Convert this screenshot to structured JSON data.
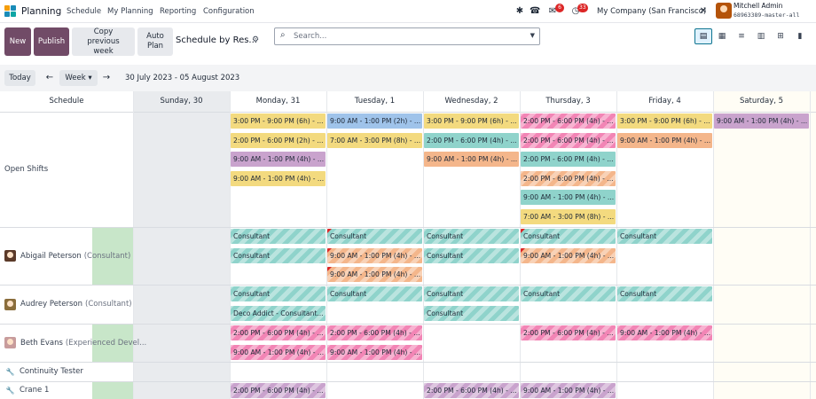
{
  "app": {
    "name": "Planning",
    "menus": [
      "Schedule",
      "My Planning",
      "Reporting",
      "Configuration"
    ],
    "icons": [
      "bug-icon",
      "phone-icon",
      "chat-icon",
      "clock-icon"
    ],
    "chat_count": "6",
    "activity_count": "33",
    "company": "My Company (San Francisco)",
    "user_name": "Mitchell Admin",
    "database": "68963389-master-all"
  },
  "control": {
    "new": "New",
    "publish": "Publish",
    "copy_previous_week": "Copy previous week",
    "auto_plan": "Auto Plan",
    "view_title": "Schedule by Res...",
    "search_placeholder": "Search...",
    "view_icons": [
      "gantt-view-icon",
      "calendar-view-icon",
      "list-view-icon",
      "kanban-view-icon",
      "pivot-view-icon",
      "graph-view-icon"
    ]
  },
  "nav": {
    "today": "Today",
    "prev": "←",
    "scale": "Week ▾",
    "next": "→",
    "range": "30 July 2023 - 05 August 2023"
  },
  "grid": {
    "schedule_header": "Schedule",
    "days": [
      "Sunday, 30",
      "Monday, 31",
      "Tuesday, 1",
      "Wednesday, 2",
      "Thursday, 3",
      "Friday, 4",
      "Saturday, 5"
    ],
    "today_index": 6,
    "colors": {
      "yellow": "#f3da7f",
      "blue": "#9fc3ea",
      "teal": "#8fd3cb",
      "orange": "#f4b68b",
      "purple": "#c9a3cd",
      "pink": "#f285b5"
    },
    "rows": [
      {
        "name": "Open Shifts",
        "sub": "",
        "kind": "group",
        "shifts": [
          {
            "day": 1,
            "slot": 0,
            "text": "3:00 PM - 9:00 PM (6h) - ...",
            "color": "yellow"
          },
          {
            "day": 1,
            "slot": 1,
            "text": "2:00 PM - 6:00 PM (2h) - ...",
            "color": "yellow"
          },
          {
            "day": 1,
            "slot": 2,
            "text": "9:00 AM - 1:00 PM (4h) - ...",
            "color": "purple"
          },
          {
            "day": 1,
            "slot": 3,
            "text": "9:00 AM - 1:00 PM (4h) - ...",
            "color": "yellow"
          },
          {
            "day": 2,
            "slot": 0,
            "text": "9:00 AM - 1:00 PM (2h) - ...",
            "color": "blue"
          },
          {
            "day": 2,
            "slot": 1,
            "text": "7:00 AM - 3:00 PM (8h) - ...",
            "color": "yellow"
          },
          {
            "day": 3,
            "slot": 0,
            "text": "3:00 PM - 9:00 PM (6h) - ...",
            "color": "yellow"
          },
          {
            "day": 3,
            "slot": 1,
            "text": "2:00 PM - 6:00 PM (4h) - ...",
            "color": "teal"
          },
          {
            "day": 3,
            "slot": 2,
            "text": "9:00 AM - 1:00 PM (4h) - ...",
            "color": "orange"
          },
          {
            "day": 4,
            "slot": 0,
            "text": "2:00 PM - 6:00 PM (4h) - ...",
            "color": "pink",
            "striped": true
          },
          {
            "day": 4,
            "slot": 1,
            "text": "2:00 PM - 6:00 PM (4h) - ...",
            "color": "pink",
            "striped": true
          },
          {
            "day": 4,
            "slot": 2,
            "text": "2:00 PM - 6:00 PM (4h) - ...",
            "color": "teal"
          },
          {
            "day": 4,
            "slot": 3,
            "text": "2:00 PM - 6:00 PM (4h) - ...",
            "color": "orange",
            "striped": true
          },
          {
            "day": 4,
            "slot": 4,
            "text": "9:00 AM - 1:00 PM (4h) - ...",
            "color": "teal"
          },
          {
            "day": 4,
            "slot": 5,
            "text": "7:00 AM - 3:00 PM (8h) - ...",
            "color": "yellow"
          },
          {
            "day": 5,
            "slot": 0,
            "text": "3:00 PM - 9:00 PM (6h) - ...",
            "color": "yellow"
          },
          {
            "day": 5,
            "slot": 1,
            "text": "9:00 AM - 1:00 PM (4h) - ...",
            "color": "orange"
          },
          {
            "day": 6,
            "slot": 0,
            "text": "9:00 AM - 1:00 PM (4h) - ...",
            "color": "purple"
          }
        ]
      },
      {
        "name": "Abigail Peterson",
        "sub": "(Consultant)",
        "kind": "person",
        "avatar_color": "#5b3a29",
        "progress": 0.48,
        "shifts": [
          {
            "day": 1,
            "slot": 0,
            "text": "Consultant",
            "color": "teal",
            "striped": true
          },
          {
            "day": 1,
            "slot": 1,
            "text": "Consultant",
            "color": "teal",
            "striped": true
          },
          {
            "day": 2,
            "slot": 0,
            "text": "Consultant",
            "color": "teal",
            "striped": true,
            "warn": true
          },
          {
            "day": 2,
            "slot": 1,
            "text": "9:00 AM - 1:00 PM (4h) - ...",
            "color": "orange",
            "striped": true,
            "warn": true
          },
          {
            "day": 2,
            "slot": 2,
            "text": "9:00 AM - 1:00 PM (4h) - ...",
            "color": "orange",
            "striped": true,
            "warn": true
          },
          {
            "day": 3,
            "slot": 0,
            "text": "Consultant",
            "color": "teal",
            "striped": true
          },
          {
            "day": 3,
            "slot": 1,
            "text": "Consultant",
            "color": "teal",
            "striped": true
          },
          {
            "day": 4,
            "slot": 0,
            "text": "Consultant",
            "color": "teal",
            "striped": true,
            "warn": true
          },
          {
            "day": 4,
            "slot": 1,
            "text": "9:00 AM - 1:00 PM (4h) - ...",
            "color": "orange",
            "striped": true,
            "warn": true
          },
          {
            "day": 5,
            "slot": 0,
            "text": "Consultant",
            "color": "teal",
            "striped": true
          }
        ]
      },
      {
        "name": "Audrey Peterson",
        "sub": "(Consultant)",
        "kind": "person",
        "avatar_color": "#8a6d3b",
        "progress": 0,
        "shifts": [
          {
            "day": 1,
            "slot": 0,
            "text": "Consultant",
            "color": "teal",
            "striped": true
          },
          {
            "day": 1,
            "slot": 1,
            "text": "Deco Addict - Consultant...",
            "color": "teal",
            "striped": true
          },
          {
            "day": 2,
            "slot": 0,
            "text": "Consultant",
            "color": "teal",
            "striped": true
          },
          {
            "day": 3,
            "slot": 0,
            "text": "Consultant",
            "color": "teal",
            "striped": true
          },
          {
            "day": 3,
            "slot": 1,
            "text": "Consultant",
            "color": "teal",
            "striped": true
          },
          {
            "day": 4,
            "slot": 0,
            "text": "Consultant",
            "color": "teal",
            "striped": true
          },
          {
            "day": 5,
            "slot": 0,
            "text": "Consultant",
            "color": "teal",
            "striped": true
          }
        ]
      },
      {
        "name": "Beth Evans",
        "sub": "(Experienced Devel...",
        "kind": "person",
        "avatar_color": "#c89c9c",
        "progress": 0.62,
        "shifts": [
          {
            "day": 1,
            "slot": 0,
            "text": "2:00 PM - 6:00 PM (4h) - ...",
            "color": "pink",
            "striped": true
          },
          {
            "day": 1,
            "slot": 1,
            "text": "9:00 AM - 1:00 PM (4h) - ...",
            "color": "pink",
            "striped": true
          },
          {
            "day": 2,
            "slot": 0,
            "text": "2:00 PM - 6:00 PM (4h) - ...",
            "color": "pink",
            "striped": true
          },
          {
            "day": 2,
            "slot": 1,
            "text": "9:00 AM - 1:00 PM (4h) - ...",
            "color": "pink",
            "striped": true
          },
          {
            "day": 4,
            "slot": 0,
            "text": "2:00 PM - 6:00 PM (4h) - ...",
            "color": "pink",
            "striped": true
          },
          {
            "day": 5,
            "slot": 0,
            "text": "9:00 AM - 1:00 PM (4h) - ...",
            "color": "pink",
            "striped": true
          }
        ]
      },
      {
        "name": "Continuity Tester",
        "sub": "",
        "kind": "resource",
        "progress": 0,
        "shifts": []
      },
      {
        "name": "Crane 1",
        "sub": "",
        "kind": "resource",
        "progress": 0.62,
        "shifts": [
          {
            "day": 1,
            "slot": 0,
            "text": "2:00 PM - 6:00 PM (4h) - ...",
            "color": "purple",
            "striped": true
          },
          {
            "day": 3,
            "slot": 0,
            "text": "2:00 PM - 6:00 PM (4h) - ...",
            "color": "purple",
            "striped": true
          },
          {
            "day": 4,
            "slot": 0,
            "text": "9:00 AM - 1:00 PM (4h) - ...",
            "color": "purple",
            "striped": true
          }
        ]
      }
    ]
  }
}
